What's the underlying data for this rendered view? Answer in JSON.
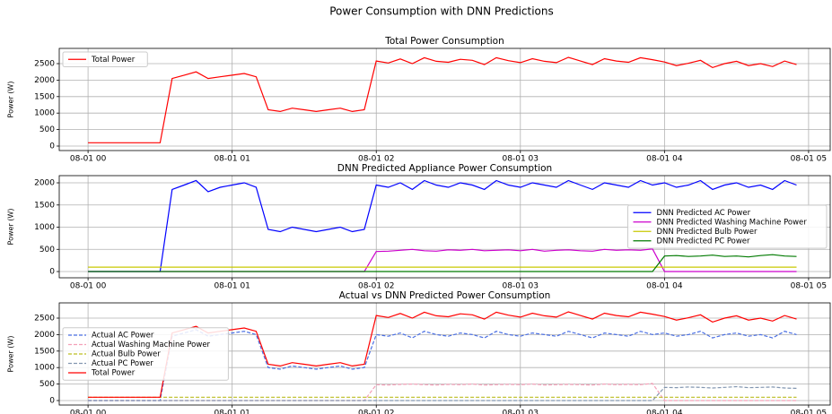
{
  "title": "Power Consumption with DNN Predictions",
  "chart_data": [
    {
      "type": "line",
      "title": "Total Power Consumption",
      "ylabel": "Power (W)",
      "x": [
        0,
        5,
        10,
        15,
        20,
        25,
        30,
        35,
        40,
        45,
        50,
        55,
        60,
        65,
        70,
        75,
        80,
        85,
        90,
        95,
        100,
        105,
        110,
        115,
        120,
        125,
        130,
        135,
        140,
        145,
        150,
        155,
        160,
        165,
        170,
        175,
        180,
        185,
        190,
        195,
        200,
        205,
        210,
        215,
        220,
        225,
        230,
        235,
        240,
        245,
        250,
        255,
        260,
        265,
        270,
        275,
        280,
        285,
        290,
        295
      ],
      "xlim": [
        -12,
        309
      ],
      "ylim": [
        -136,
        2962
      ],
      "xticks": [
        {
          "value": 0,
          "label": "08-01 00"
        },
        {
          "value": 60,
          "label": "08-01 01"
        },
        {
          "value": 120,
          "label": "08-01 02"
        },
        {
          "value": 180,
          "label": "08-01 03"
        },
        {
          "value": 240,
          "label": "08-01 04"
        },
        {
          "value": 300,
          "label": "08-01 05"
        }
      ],
      "yticks": [
        0,
        500,
        1000,
        1500,
        2000,
        2500
      ],
      "grid": true,
      "legend": "upper left",
      "series": [
        {
          "name": "Total Power",
          "color": "#ff0000",
          "linestyle": "solid",
          "values": [
            100,
            100,
            100,
            100,
            100,
            100,
            100,
            2050,
            2150,
            2250,
            2050,
            2100,
            2150,
            2200,
            2100,
            1100,
            1050,
            1150,
            1100,
            1050,
            1100,
            1150,
            1050,
            1100,
            2580,
            2520,
            2640,
            2500,
            2680,
            2570,
            2540,
            2630,
            2600,
            2470,
            2680,
            2590,
            2530,
            2650,
            2570,
            2530,
            2690,
            2580,
            2470,
            2650,
            2580,
            2540,
            2680,
            2620,
            2550,
            2440,
            2510,
            2600,
            2380,
            2500,
            2570,
            2440,
            2500,
            2410,
            2580,
            2470
          ]
        }
      ]
    },
    {
      "type": "line",
      "title": "DNN Predicted Appliance Power Consumption",
      "ylabel": "Power (W)",
      "x": [
        0,
        5,
        10,
        15,
        20,
        25,
        30,
        35,
        40,
        45,
        50,
        55,
        60,
        65,
        70,
        75,
        80,
        85,
        90,
        95,
        100,
        105,
        110,
        115,
        120,
        125,
        130,
        135,
        140,
        145,
        150,
        155,
        160,
        165,
        170,
        175,
        180,
        185,
        190,
        195,
        200,
        205,
        210,
        215,
        220,
        225,
        230,
        235,
        240,
        245,
        250,
        255,
        260,
        265,
        270,
        275,
        280,
        285,
        290,
        295
      ],
      "xlim": [
        -12,
        309
      ],
      "ylim": [
        -141,
        2162
      ],
      "xticks": [
        {
          "value": 0,
          "label": "08-01 00"
        },
        {
          "value": 60,
          "label": "08-01 01"
        },
        {
          "value": 120,
          "label": "08-01 02"
        },
        {
          "value": 180,
          "label": "08-01 03"
        },
        {
          "value": 240,
          "label": "08-01 04"
        },
        {
          "value": 300,
          "label": "08-01 05"
        }
      ],
      "yticks": [
        0,
        500,
        1000,
        1500,
        2000
      ],
      "grid": true,
      "legend": "center right",
      "series": [
        {
          "name": "DNN Predicted AC Power",
          "color": "#0000ff",
          "linestyle": "solid",
          "values": [
            0,
            0,
            0,
            0,
            0,
            0,
            0,
            1850,
            1950,
            2050,
            1800,
            1900,
            1950,
            2000,
            1900,
            950,
            900,
            1000,
            950,
            900,
            950,
            1000,
            900,
            950,
            1950,
            1900,
            2000,
            1850,
            2050,
            1950,
            1900,
            2000,
            1950,
            1850,
            2050,
            1950,
            1900,
            2000,
            1950,
            1900,
            2050,
            1950,
            1850,
            2000,
            1950,
            1900,
            2050,
            1950,
            2000,
            1900,
            1950,
            2050,
            1850,
            1950,
            2000,
            1900,
            1950,
            1850,
            2050,
            1950
          ]
        },
        {
          "name": "DNN Predicted Washing Machine Power",
          "color": "#cc00cc",
          "linestyle": "solid",
          "values": [
            0,
            0,
            0,
            0,
            0,
            0,
            0,
            0,
            0,
            0,
            0,
            0,
            0,
            0,
            0,
            0,
            0,
            0,
            0,
            0,
            0,
            0,
            0,
            0,
            450,
            460,
            480,
            500,
            470,
            460,
            490,
            480,
            500,
            470,
            480,
            490,
            470,
            500,
            460,
            480,
            490,
            470,
            460,
            500,
            480,
            490,
            480,
            510,
            0,
            0,
            0,
            0,
            0,
            0,
            0,
            0,
            0,
            0,
            0,
            0
          ]
        },
        {
          "name": "DNN Predicted Bulb Power",
          "color": "#c8c800",
          "linestyle": "solid",
          "values": [
            100,
            100,
            100,
            100,
            100,
            100,
            100,
            100,
            100,
            100,
            100,
            100,
            100,
            100,
            100,
            100,
            100,
            100,
            100,
            100,
            100,
            100,
            100,
            100,
            100,
            100,
            100,
            100,
            100,
            100,
            100,
            100,
            100,
            100,
            100,
            100,
            100,
            100,
            100,
            100,
            100,
            100,
            100,
            100,
            100,
            100,
            100,
            100,
            100,
            100,
            100,
            100,
            100,
            100,
            100,
            100,
            100,
            100,
            100,
            100
          ]
        },
        {
          "name": "DNN Predicted PC Power",
          "color": "#007a00",
          "linestyle": "solid",
          "values": [
            0,
            0,
            0,
            0,
            0,
            0,
            0,
            0,
            0,
            0,
            0,
            0,
            0,
            0,
            0,
            0,
            0,
            0,
            0,
            0,
            0,
            0,
            0,
            0,
            0,
            0,
            0,
            0,
            0,
            0,
            0,
            0,
            0,
            0,
            0,
            0,
            0,
            0,
            0,
            0,
            0,
            0,
            0,
            0,
            0,
            0,
            0,
            0,
            350,
            360,
            340,
            350,
            370,
            340,
            350,
            330,
            360,
            380,
            350,
            340
          ]
        }
      ]
    },
    {
      "type": "line",
      "title": "Actual vs DNN Predicted Power Consumption",
      "ylabel": "Power (W)",
      "x": [
        0,
        5,
        10,
        15,
        20,
        25,
        30,
        35,
        40,
        45,
        50,
        55,
        60,
        65,
        70,
        75,
        80,
        85,
        90,
        95,
        100,
        105,
        110,
        115,
        120,
        125,
        130,
        135,
        140,
        145,
        150,
        155,
        160,
        165,
        170,
        175,
        180,
        185,
        190,
        195,
        200,
        205,
        210,
        215,
        220,
        225,
        230,
        235,
        240,
        245,
        250,
        255,
        260,
        265,
        270,
        275,
        280,
        285,
        290,
        295
      ],
      "xlim": [
        -12,
        309
      ],
      "ylim": [
        -136,
        2962
      ],
      "xticks": [
        {
          "value": 0,
          "label": "08-01 00"
        },
        {
          "value": 60,
          "label": "08-01 01"
        },
        {
          "value": 120,
          "label": "08-01 02"
        },
        {
          "value": 180,
          "label": "08-01 03"
        },
        {
          "value": 240,
          "label": "08-01 04"
        },
        {
          "value": 300,
          "label": "08-01 05"
        }
      ],
      "yticks": [
        0,
        500,
        1000,
        1500,
        2000,
        2500
      ],
      "grid": true,
      "legend": "center left",
      "series": [
        {
          "name": "Actual AC Power",
          "color": "#4a6fe3",
          "linestyle": "dashed",
          "values": [
            0,
            0,
            0,
            0,
            0,
            0,
            0,
            1950,
            2050,
            2150,
            1950,
            2000,
            2050,
            2100,
            2000,
            1000,
            950,
            1050,
            1000,
            950,
            1000,
            1050,
            950,
            1000,
            2000,
            1950,
            2050,
            1900,
            2100,
            2000,
            1950,
            2050,
            2000,
            1900,
            2100,
            2000,
            1950,
            2050,
            2000,
            1950,
            2100,
            2000,
            1900,
            2050,
            2000,
            1950,
            2100,
            2000,
            2050,
            1950,
            2000,
            2100,
            1900,
            2000,
            2050,
            1950,
            2000,
            1900,
            2100,
            2000
          ]
        },
        {
          "name": "Actual Washing Machine Power",
          "color": "#f4a0b8",
          "linestyle": "dashed",
          "values": [
            0,
            0,
            0,
            0,
            0,
            0,
            0,
            0,
            0,
            0,
            0,
            0,
            0,
            0,
            0,
            0,
            0,
            0,
            0,
            0,
            0,
            0,
            0,
            0,
            480,
            470,
            490,
            500,
            480,
            470,
            490,
            480,
            500,
            470,
            480,
            490,
            480,
            500,
            470,
            480,
            490,
            480,
            470,
            500,
            480,
            490,
            480,
            520,
            0,
            0,
            0,
            0,
            0,
            0,
            0,
            0,
            0,
            0,
            0,
            0
          ]
        },
        {
          "name": "Actual Bulb Power",
          "color": "#bcbd22",
          "linestyle": "dashed",
          "values": [
            100,
            100,
            100,
            100,
            100,
            100,
            100,
            100,
            100,
            100,
            100,
            100,
            100,
            100,
            100,
            100,
            100,
            100,
            100,
            100,
            100,
            100,
            100,
            100,
            100,
            100,
            100,
            100,
            100,
            100,
            100,
            100,
            100,
            100,
            100,
            100,
            100,
            100,
            100,
            100,
            100,
            100,
            100,
            100,
            100,
            100,
            100,
            100,
            100,
            100,
            100,
            100,
            100,
            100,
            100,
            100,
            100,
            100,
            100,
            100
          ]
        },
        {
          "name": "Actual PC Power",
          "color": "#8296b0",
          "linestyle": "dashed",
          "values": [
            0,
            0,
            0,
            0,
            0,
            0,
            0,
            0,
            0,
            0,
            0,
            0,
            0,
            0,
            0,
            0,
            0,
            0,
            0,
            0,
            0,
            0,
            0,
            0,
            0,
            0,
            0,
            0,
            0,
            0,
            0,
            0,
            0,
            0,
            0,
            0,
            0,
            0,
            0,
            0,
            0,
            0,
            0,
            0,
            0,
            0,
            0,
            0,
            400,
            390,
            410,
            400,
            380,
            400,
            420,
            390,
            400,
            410,
            380,
            370
          ]
        },
        {
          "name": "Total Power",
          "color": "#ff0000",
          "linestyle": "solid",
          "values": [
            100,
            100,
            100,
            100,
            100,
            100,
            100,
            2050,
            2150,
            2250,
            2050,
            2100,
            2150,
            2200,
            2100,
            1100,
            1050,
            1150,
            1100,
            1050,
            1100,
            1150,
            1050,
            1100,
            2580,
            2520,
            2640,
            2500,
            2680,
            2570,
            2540,
            2630,
            2600,
            2470,
            2680,
            2590,
            2530,
            2650,
            2570,
            2530,
            2690,
            2580,
            2470,
            2650,
            2580,
            2540,
            2680,
            2620,
            2550,
            2440,
            2510,
            2600,
            2380,
            2500,
            2570,
            2440,
            2500,
            2410,
            2580,
            2470
          ]
        }
      ]
    }
  ]
}
